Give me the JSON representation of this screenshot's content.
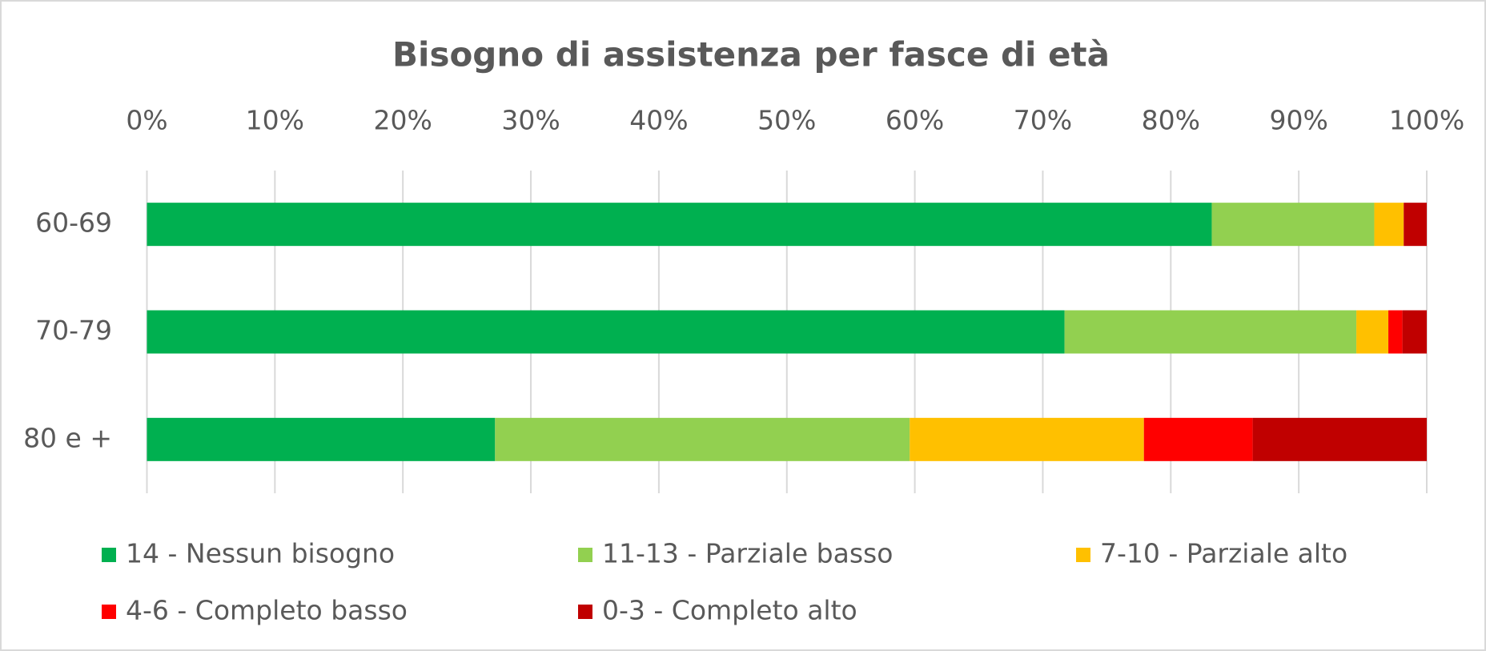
{
  "chart_data": {
    "type": "stacked_barh",
    "title": "Bisogno di assistenza per fasce di età",
    "categories": [
      "60-69",
      "70-79",
      "80 e +"
    ],
    "series": [
      {
        "name": "14 - Nessun bisogno",
        "color": "#00b050",
        "values": [
          83.2,
          71.7,
          27.2
        ]
      },
      {
        "name": "11-13 - Parziale basso",
        "color": "#92d050",
        "values": [
          12.7,
          22.8,
          32.4
        ]
      },
      {
        "name": "7-10 - Parziale alto",
        "color": "#ffc000",
        "values": [
          2.3,
          2.5,
          18.3
        ]
      },
      {
        "name": "4-6 - Completo basso",
        "color": "#ff0000",
        "values": [
          0,
          1.1,
          8.5
        ]
      },
      {
        "name": "0-3 - Completo alto",
        "color": "#c00000",
        "values": [
          1.8,
          1.9,
          13.6
        ]
      }
    ],
    "xlim": [
      0,
      100
    ],
    "xticks": [
      {
        "value": 0,
        "label": "0%"
      },
      {
        "value": 10,
        "label": "10%"
      },
      {
        "value": 20,
        "label": "20%"
      },
      {
        "value": 30,
        "label": "30%"
      },
      {
        "value": 40,
        "label": "40%"
      },
      {
        "value": 50,
        "label": "50%"
      },
      {
        "value": 60,
        "label": "60%"
      },
      {
        "value": 70,
        "label": "70%"
      },
      {
        "value": 80,
        "label": "80%"
      },
      {
        "value": 90,
        "label": "90%"
      },
      {
        "value": 100,
        "label": "100%"
      }
    ],
    "grid": true,
    "legend": "bottom"
  }
}
